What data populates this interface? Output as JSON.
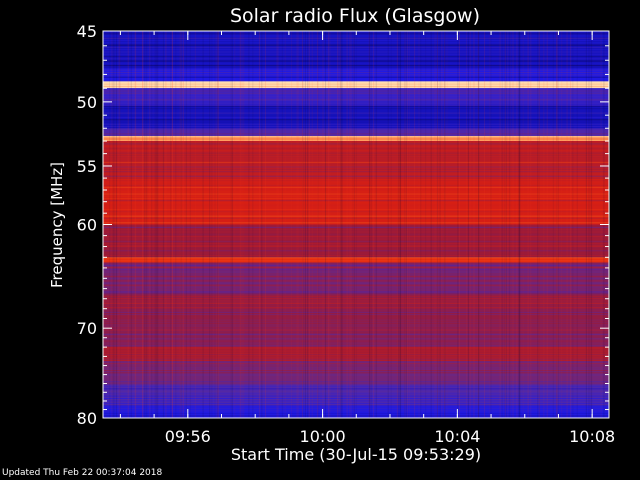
{
  "chart_data": {
    "type": "heatmap",
    "title": "Solar radio Flux (Glasgow)",
    "xlabel": "Start Time (30-Jul-15 09:53:29)",
    "ylabel": "Frequency [MHz]",
    "x_range": [
      "09:53:29",
      "10:08:30"
    ],
    "y_range": [
      45,
      80
    ],
    "y_direction": "increasing downward",
    "y_scale": "log",
    "x_ticks": [
      "09:56",
      "10:00",
      "10:04",
      "10:08"
    ],
    "y_ticks": [
      "45",
      "50",
      "55",
      "60",
      "70",
      "80"
    ],
    "color_scale": [
      "#08004e",
      "#1c19e6",
      "#5a2b9e",
      "#9a1a3a",
      "#e0200f",
      "#ff6a20",
      "#ffe9c0"
    ],
    "grid": false,
    "legend": "none",
    "frequency_bands": [
      {
        "from": 45.0,
        "to": 47.5,
        "intensity": 0.12
      },
      {
        "from": 47.5,
        "to": 48.5,
        "intensity": 0.18
      },
      {
        "from": 48.5,
        "to": 49.0,
        "intensity": 0.98
      },
      {
        "from": 49.0,
        "to": 50.3,
        "intensity": 0.25
      },
      {
        "from": 50.3,
        "to": 52.0,
        "intensity": 0.12
      },
      {
        "from": 52.0,
        "to": 52.6,
        "intensity": 0.3
      },
      {
        "from": 52.6,
        "to": 53.0,
        "intensity": 0.9
      },
      {
        "from": 53.0,
        "to": 56.0,
        "intensity": 0.58
      },
      {
        "from": 56.0,
        "to": 60.0,
        "intensity": 0.64
      },
      {
        "from": 60.0,
        "to": 63.0,
        "intensity": 0.5
      },
      {
        "from": 63.0,
        "to": 63.5,
        "intensity": 0.7
      },
      {
        "from": 63.5,
        "to": 66.5,
        "intensity": 0.42
      },
      {
        "from": 66.5,
        "to": 69.0,
        "intensity": 0.48
      },
      {
        "from": 69.0,
        "to": 72.0,
        "intensity": 0.45
      },
      {
        "from": 72.0,
        "to": 73.5,
        "intensity": 0.55
      },
      {
        "from": 73.5,
        "to": 76.0,
        "intensity": 0.4
      },
      {
        "from": 76.0,
        "to": 78.5,
        "intensity": 0.3
      },
      {
        "from": 78.5,
        "to": 80.0,
        "intensity": 0.18
      }
    ]
  },
  "footer": {
    "updated": "Updated Thu Feb 22 00:37:04 2018"
  }
}
